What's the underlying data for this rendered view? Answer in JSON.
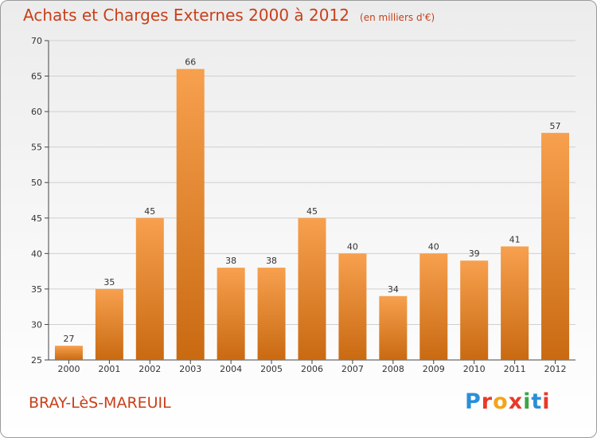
{
  "header": {
    "title": "Achats et Charges Externes 2000 à 2012",
    "unit_note": "(en milliers d'€)"
  },
  "footer": {
    "town": "BRAY-LèS-MAREUIL",
    "brand": "Proxiti"
  },
  "colors": {
    "bar_light": "#f7a04e",
    "bar_dark": "#c96a12",
    "title": "#c8401a",
    "axis": "#444444",
    "grid": "#d0d0d0"
  },
  "chart_data": {
    "type": "bar",
    "categories": [
      "2000",
      "2001",
      "2002",
      "2003",
      "2004",
      "2005",
      "2006",
      "2007",
      "2008",
      "2009",
      "2010",
      "2011",
      "2012"
    ],
    "values": [
      27,
      35,
      45,
      66,
      38,
      38,
      45,
      40,
      34,
      40,
      39,
      41,
      57
    ],
    "data_labels": [
      "27",
      "35",
      "45",
      "66",
      "38",
      "38",
      "45",
      "40",
      "34",
      "40",
      "39",
      "41",
      "57"
    ],
    "ylim": [
      25,
      70
    ],
    "yticks": [
      25,
      30,
      35,
      40,
      45,
      50,
      55,
      60,
      65,
      70
    ],
    "grid": true,
    "title": "Achats et Charges Externes 2000 à 2012",
    "xlabel": "",
    "ylabel": ""
  }
}
